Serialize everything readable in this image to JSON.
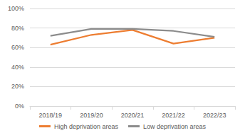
{
  "chart_data": {
    "type": "line",
    "categories": [
      "2018/19",
      "2019/20",
      "2020/21",
      "2021/22",
      "2022/23"
    ],
    "series": [
      {
        "name": "High deprivation areas",
        "color": "#ed7d31",
        "values": [
          63,
          73,
          78,
          64,
          70
        ]
      },
      {
        "name": "Low deprivation areas",
        "color": "#8c8c8c",
        "values": [
          72,
          79,
          79,
          77,
          71
        ]
      }
    ],
    "ylim": [
      0,
      100
    ],
    "yticks": [
      {
        "value": 0,
        "label": "0%"
      },
      {
        "value": 20,
        "label": "20%"
      },
      {
        "value": 40,
        "label": "40%"
      },
      {
        "value": 60,
        "label": "60%"
      },
      {
        "value": 80,
        "label": "80%"
      },
      {
        "value": 100,
        "label": "100%"
      }
    ],
    "grid": true,
    "legend": "bottom",
    "marker": "none",
    "line_style": "solid"
  }
}
